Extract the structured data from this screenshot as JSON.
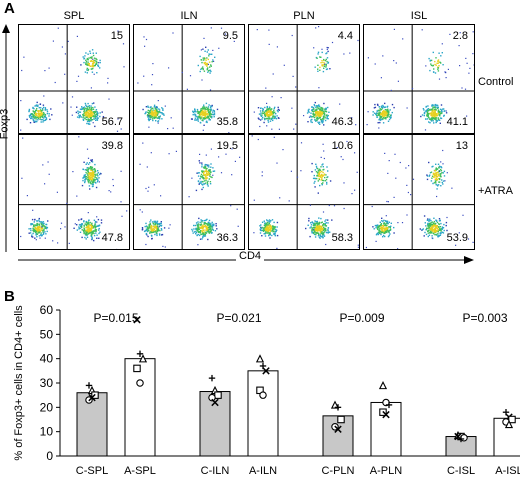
{
  "panel_a": {
    "letter": "A",
    "columns": [
      "SPL",
      "ILN",
      "PLN",
      "ISL"
    ],
    "rows": [
      "Control",
      "+ATRA"
    ],
    "y_axis_label": "Foxp3",
    "x_axis_label": "CD4",
    "quadrants": [
      [
        {
          "ur": "15",
          "lr": "56.7"
        },
        {
          "ur": "9.5",
          "lr": "35.8"
        },
        {
          "ur": "4.4",
          "lr": "46.3"
        },
        {
          "ur": "2.8",
          "lr": "41.1"
        }
      ],
      [
        {
          "ur": "39.8",
          "lr": "47.8"
        },
        {
          "ur": "19.5",
          "lr": "36.3"
        },
        {
          "ur": "10.6",
          "lr": "58.3"
        },
        {
          "ur": "13",
          "lr": "53.9"
        }
      ]
    ]
  },
  "panel_b": {
    "letter": "B"
  },
  "chart_data": {
    "type": "bar",
    "ylabel": "% of Foxp3+ cells in CD4+ cells",
    "ylim": [
      0,
      60
    ],
    "yticks": [
      "0",
      "10",
      "20",
      "30",
      "40",
      "50",
      "60"
    ],
    "categories": [
      "C-SPL",
      "A-SPL",
      "C-ILN",
      "A-ILN",
      "C-PLN",
      "A-PLN",
      "C-ISL",
      "A-ISL"
    ],
    "values": [
      26,
      40,
      26.5,
      35,
      16.5,
      22,
      8,
      15.5
    ],
    "bar_fills": [
      "#c8c8c8",
      "#ffffff",
      "#c8c8c8",
      "#ffffff",
      "#c8c8c8",
      "#ffffff",
      "#c8c8c8",
      "#ffffff"
    ],
    "p_values": [
      "P=0.015",
      "P=0.021",
      "P=0.009",
      "P=0.003"
    ],
    "points": [
      [
        {
          "y": 29,
          "m": "plus"
        },
        {
          "y": 27,
          "m": "triangle"
        },
        {
          "y": 25,
          "m": "square"
        },
        {
          "y": 23,
          "m": "circle"
        },
        {
          "y": 24,
          "m": "cross"
        }
      ],
      [
        {
          "y": 56,
          "m": "cross"
        },
        {
          "y": 42,
          "m": "plus"
        },
        {
          "y": 40,
          "m": "triangle"
        },
        {
          "y": 36,
          "m": "square"
        },
        {
          "y": 30,
          "m": "circle"
        }
      ],
      [
        {
          "y": 32,
          "m": "plus"
        },
        {
          "y": 27,
          "m": "triangle"
        },
        {
          "y": 25,
          "m": "square"
        },
        {
          "y": 24,
          "m": "circle"
        },
        {
          "y": 22,
          "m": "cross"
        }
      ],
      [
        {
          "y": 40,
          "m": "triangle"
        },
        {
          "y": 37,
          "m": "plus"
        },
        {
          "y": 35,
          "m": "cross"
        },
        {
          "y": 27,
          "m": "square"
        },
        {
          "y": 25,
          "m": "circle"
        }
      ],
      [
        {
          "y": 21,
          "m": "triangle"
        },
        {
          "y": 20,
          "m": "plus"
        },
        {
          "y": 15,
          "m": "square"
        },
        {
          "y": 12,
          "m": "circle"
        },
        {
          "y": 11,
          "m": "cross"
        }
      ],
      [
        {
          "y": 29,
          "m": "triangle"
        },
        {
          "y": 22,
          "m": "circle"
        },
        {
          "y": 21,
          "m": "plus"
        },
        {
          "y": 18,
          "m": "square"
        },
        {
          "y": 17,
          "m": "cross"
        }
      ],
      [
        {
          "y": 8.5,
          "m": "triangle"
        },
        {
          "y": 8,
          "m": "square"
        },
        {
          "y": 7.5,
          "m": "circle"
        },
        {
          "y": 8,
          "m": "cross"
        },
        {
          "y": 7,
          "m": "plus"
        }
      ],
      [
        {
          "y": 18,
          "m": "plus"
        },
        {
          "y": 16,
          "m": "cross"
        },
        {
          "y": 15,
          "m": "square"
        },
        {
          "y": 14,
          "m": "circle"
        },
        {
          "y": 13,
          "m": "triangle"
        }
      ]
    ]
  }
}
